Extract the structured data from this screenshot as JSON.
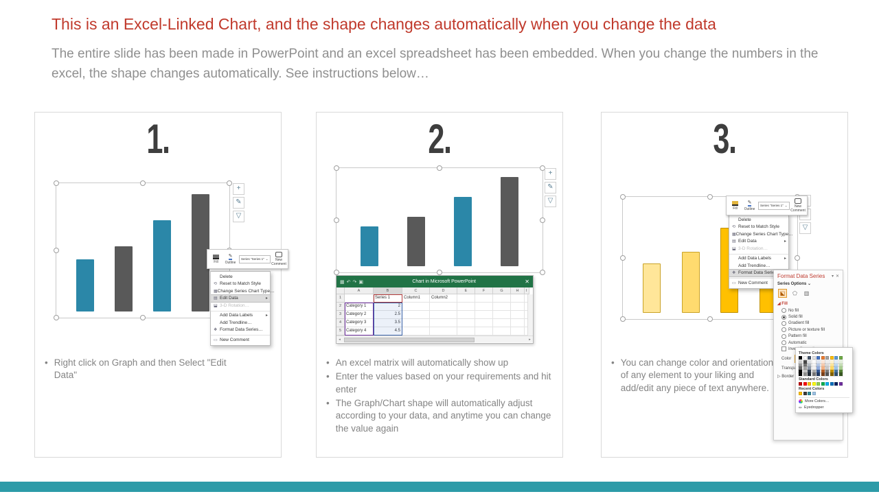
{
  "slide": {
    "title": "This is an Excel-Linked Chart, and the shape changes automatically when you change the data",
    "subtitle": "The entire slide has been made in PowerPoint and an excel spreadsheet has been embedded. When you change the numbers in the excel, the shape changes automatically. See instructions below…",
    "accent_red": "#c0392b",
    "footer_teal": "#2d9ba8"
  },
  "chart_data": {
    "type": "bar",
    "categories": [
      "Category 1",
      "Category 2",
      "Category 3",
      "Category 4"
    ],
    "series": [
      {
        "name": "Series 1",
        "values": [
          2,
          2.5,
          3.5,
          4.5
        ]
      }
    ],
    "ylim": [
      0,
      5
    ],
    "title": "",
    "xlabel": "",
    "ylabel": "",
    "legend": false,
    "grid": false,
    "panel_styles": [
      {
        "fills": [
          "#2b87a8",
          "#595959",
          "#2b87a8",
          "#595959"
        ],
        "borders": null
      },
      {
        "fills": [
          "#ffe699",
          "#ffdb6f",
          "#ffc000",
          "#ffc000"
        ],
        "borders": [
          "#c9a227",
          "#c9a227",
          "#bf9000",
          "#bf9000"
        ]
      }
    ]
  },
  "panels": [
    {
      "number": "1.",
      "bullets": [
        "Right click on Graph and then Select \"Edit Data\""
      ]
    },
    {
      "number": "2.",
      "bullets": [
        "An excel matrix will automatically show up",
        "Enter the values based on your requirements and hit enter",
        "The Graph/Chart shape will automatically adjust according to your data, and anytime you can change the value again"
      ]
    },
    {
      "number": "3.",
      "bullets": [
        "You can change color and orientation of any element to your liking and add/edit any piece of text anywhere."
      ]
    }
  ],
  "chart_buttons": [
    "chart-elements",
    "chart-styles",
    "chart-filters"
  ],
  "mini_toolbar": {
    "fill": "Fill",
    "outline": "Outline",
    "series": "Series \"Series 1\"",
    "new_comment": "New Comment"
  },
  "context_menu": {
    "items": [
      {
        "label": "Delete",
        "icon": ""
      },
      {
        "label": "Reset to Match Style",
        "icon": "reset"
      },
      {
        "label": "Change Series Chart Type…",
        "icon": "chart"
      },
      {
        "label": "Edit Data",
        "icon": "edit",
        "arrow": true
      },
      {
        "label": "3-D Rotation…",
        "icon": "rotation",
        "disabled": true
      },
      {
        "label": "Add Data Labels",
        "icon": "",
        "arrow": true,
        "separator_before": true
      },
      {
        "label": "Add Trendline…",
        "icon": ""
      },
      {
        "label": "Format Data Series…",
        "icon": "format"
      },
      {
        "label": "New Comment",
        "icon": "comment",
        "separator_before": true
      }
    ]
  },
  "excel": {
    "title": "Chart in Microsoft PowerPoint",
    "columns": [
      "A",
      "B",
      "C",
      "D",
      "E",
      "F",
      "G",
      "H",
      "I"
    ],
    "rows": [
      {
        "n": "1",
        "cells": [
          "",
          "Series 1",
          "Column1",
          "Column2",
          "",
          "",
          "",
          "",
          ""
        ]
      },
      {
        "n": "2",
        "cells": [
          "Category 1",
          "2",
          "",
          "",
          "",
          "",
          "",
          "",
          ""
        ]
      },
      {
        "n": "3",
        "cells": [
          "Category 2",
          "2.5",
          "",
          "",
          "",
          "",
          "",
          "",
          ""
        ]
      },
      {
        "n": "4",
        "cells": [
          "Category 3",
          "3.5",
          "",
          "",
          "",
          "",
          "",
          "",
          ""
        ]
      },
      {
        "n": "5",
        "cells": [
          "Category 4",
          "4.5",
          "",
          "",
          "",
          "",
          "",
          "",
          ""
        ]
      }
    ]
  },
  "format_panel": {
    "title": "Format Data Series",
    "series_options": "Series Options",
    "fill_header": "Fill",
    "options": [
      "No fill",
      "Solid fill",
      "Gradient fill",
      "Picture or texture fill",
      "Pattern fill",
      "Automatic",
      "Invert if negative"
    ],
    "selected_option": "Solid fill",
    "color_label": "Color",
    "transparency_label": "Transparency",
    "border_label": "Border",
    "color_picker": {
      "theme_label": "Theme Colors",
      "standard_label": "Standard Colors",
      "recent_label": "Recent Colors",
      "more_colors": "More Colors…",
      "eyedropper": "Eyedropper",
      "theme_colors": [
        "#000000",
        "#FFFFFF",
        "#44546A",
        "#E7E6E6",
        "#4472C4",
        "#ED7D31",
        "#A5A5A5",
        "#FFC000",
        "#5B9BD5",
        "#70AD47"
      ],
      "standard_colors": [
        "#C00000",
        "#FF0000",
        "#FFC000",
        "#FFFF00",
        "#92D050",
        "#00B050",
        "#00B0F0",
        "#0070C0",
        "#002060",
        "#7030A0"
      ],
      "recent_colors": [
        "#FFC000",
        "#3B3B3B",
        "#2E8B9A",
        "#9DC3E6"
      ]
    }
  }
}
